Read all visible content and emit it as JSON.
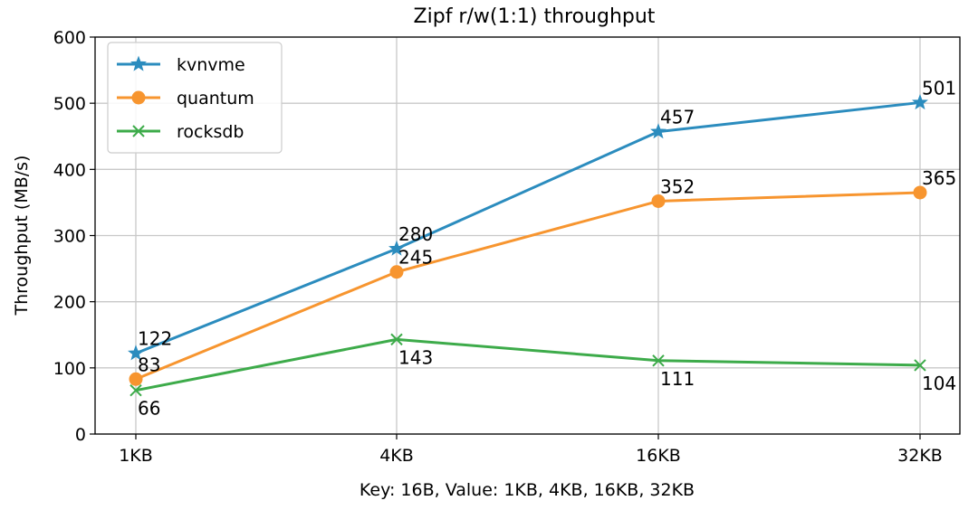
{
  "chart_data": {
    "type": "line",
    "title": "Zipf r/w(1:1) throughput",
    "xlabel": "Key: 16B, Value: 1KB, 4KB, 16KB, 32KB",
    "ylabel": "Throughput (MB/s)",
    "categories": [
      "1KB",
      "4KB",
      "16KB",
      "32KB"
    ],
    "ylim": [
      0,
      600
    ],
    "yticks": [
      0,
      100,
      200,
      300,
      400,
      500,
      600
    ],
    "grid": true,
    "legend_position": "top-left",
    "series": [
      {
        "name": "kvnvme",
        "values": [
          122,
          280,
          457,
          501
        ],
        "color": "#2b8cbe",
        "marker": "star",
        "labels": [
          "122",
          "280",
          "457",
          "501"
        ],
        "label_position": "above"
      },
      {
        "name": "quantum",
        "values": [
          83,
          245,
          352,
          365
        ],
        "color": "#f7952f",
        "marker": "circle",
        "labels": [
          "83",
          "245",
          "352",
          "365"
        ],
        "label_position": "above"
      },
      {
        "name": "rocksdb",
        "values": [
          66,
          143,
          111,
          104
        ],
        "color": "#3dab4a",
        "marker": "x",
        "labels": [
          "66",
          "143",
          "111",
          "104"
        ],
        "label_position": "below"
      }
    ]
  }
}
